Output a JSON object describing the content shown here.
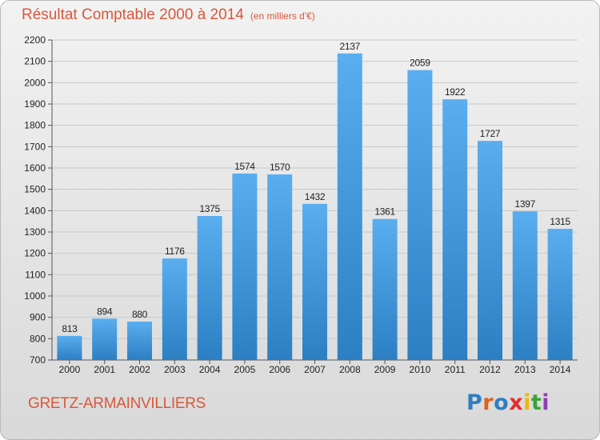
{
  "title": "Résultat Comptable 2000 à 2014",
  "subtitle": "(en milliers d'€)",
  "commune": "GRETZ-ARMAINVILLIERS",
  "brand": {
    "text": "Proxiti",
    "letter_colors": [
      "#2f7ec1",
      "#e0611b",
      "#2f7ec1",
      "#e42d2d",
      "#f0b800",
      "#3aa33a",
      "#8f3fb5"
    ]
  },
  "colors": {
    "title": "#d9583b",
    "bar_top": "#5aaef0",
    "bar_bottom": "#2c7fc2",
    "grid": "#c8c8c8"
  },
  "chart_data": {
    "type": "bar",
    "categories": [
      "2000",
      "2001",
      "2002",
      "2003",
      "2004",
      "2005",
      "2006",
      "2007",
      "2008",
      "2009",
      "2010",
      "2011",
      "2012",
      "2013",
      "2014"
    ],
    "values": [
      813,
      894,
      880,
      1176,
      1375,
      1574,
      1570,
      1432,
      2137,
      1361,
      2059,
      1922,
      1727,
      1397,
      1315
    ],
    "ylim": [
      700,
      2200
    ],
    "yticks": [
      700,
      800,
      900,
      1000,
      1100,
      1200,
      1300,
      1400,
      1500,
      1600,
      1700,
      1800,
      1900,
      2000,
      2100,
      2200
    ],
    "grid": true,
    "xlabel": "",
    "ylabel": ""
  }
}
